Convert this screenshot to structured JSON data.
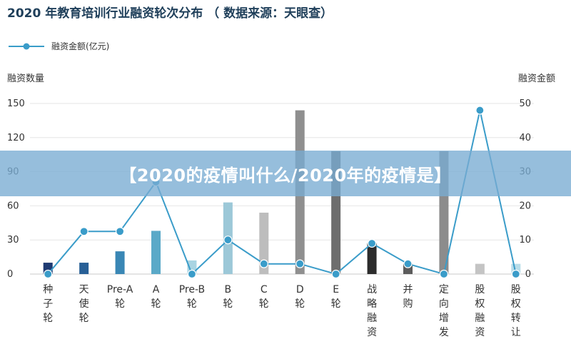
{
  "title": "2020 年教育培训行业融资轮次分布 （ 数据来源：天眼查）",
  "legend": {
    "line_label": "融资金额(亿元)"
  },
  "banner": "【2020的疫情叫什么/2020年的疫情是】",
  "colors": {
    "line": "#3a9cc9",
    "axis_text": "#333333"
  },
  "chart_data": {
    "type": "bar",
    "categories": [
      "种子轮",
      "天使轮",
      "Pre-A轮",
      "A轮",
      "Pre-B轮",
      "B轮",
      "C轮",
      "D轮",
      "E轮",
      "战略融资",
      "并购",
      "定向增发",
      "股权融资",
      "股权转让"
    ],
    "category_labels": [
      [
        "种",
        "子",
        "轮"
      ],
      [
        "天",
        "使",
        "轮"
      ],
      [
        "Pre-A",
        "轮"
      ],
      [
        "A",
        "轮"
      ],
      [
        "Pre-B",
        "轮"
      ],
      [
        "B",
        "轮"
      ],
      [
        "C",
        "轮"
      ],
      [
        "D",
        "轮"
      ],
      [
        "E",
        "轮"
      ],
      [
        "战",
        "略",
        "融",
        "资"
      ],
      [
        "并",
        "购"
      ],
      [
        "定",
        "向",
        "增",
        "发"
      ],
      [
        "股",
        "权",
        "融",
        "资"
      ],
      [
        "股",
        "权",
        "转",
        "让"
      ]
    ],
    "ylabel_left": "融资数量",
    "ylabel_right": "融资金额",
    "ylim_left": [
      0,
      150
    ],
    "ylim_right": [
      0,
      50
    ],
    "yticks_left": [
      0,
      30,
      60,
      90,
      120,
      150
    ],
    "yticks_right": [
      0,
      10,
      20,
      30,
      40,
      50
    ],
    "bars": {
      "values": [
        10,
        10,
        20,
        38,
        12,
        63,
        54,
        144,
        108,
        27,
        9,
        108,
        9,
        9
      ],
      "colors": [
        "#1f3b73",
        "#275f96",
        "#3a87b5",
        "#5aa9c8",
        "#a9d4e2",
        "#9cc8d8",
        "#bdbdbd",
        "#8f8f8f",
        "#6e6e6e",
        "#2c2c2c",
        "#5c5c5c",
        "#8c8c8c",
        "#c4c4c4",
        "#b8dde9"
      ]
    },
    "series": [
      {
        "name": "融资金额(亿元)",
        "axis": "right",
        "values": [
          0,
          12.5,
          12.5,
          27,
          0,
          10,
          3,
          3,
          0,
          9,
          3,
          0,
          48,
          0
        ]
      }
    ],
    "grid": true,
    "legend_position": "top-left"
  }
}
